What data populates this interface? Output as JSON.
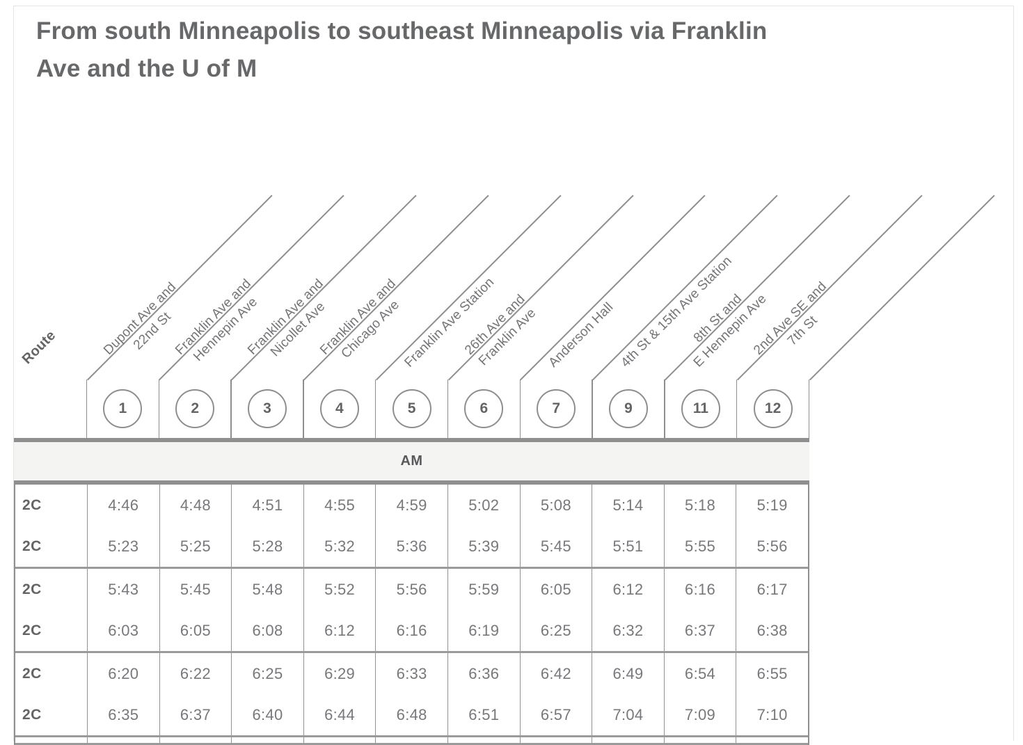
{
  "title": "From south Minneapolis to southeast Minneapolis via Franklin Ave and the U of M",
  "title_lines": [
    "From south Minneapolis to southeast Minneapolis via Franklin",
    "Ave and the U of M"
  ],
  "route_column_label": "Route",
  "period_label": "AM",
  "stops": [
    {
      "number": "1",
      "name_lines": [
        "Dupont Ave and",
        "22nd St"
      ]
    },
    {
      "number": "2",
      "name_lines": [
        "Franklin Ave and",
        "Hennepin Ave"
      ]
    },
    {
      "number": "3",
      "name_lines": [
        "Franklin Ave and",
        "Nicollet Ave"
      ]
    },
    {
      "number": "4",
      "name_lines": [
        "Franklin Ave and",
        "Chicago Ave"
      ]
    },
    {
      "number": "5",
      "name_lines": [
        "Franklin Ave Station"
      ]
    },
    {
      "number": "6",
      "name_lines": [
        "26th Ave and",
        "Franklin Ave"
      ]
    },
    {
      "number": "7",
      "name_lines": [
        "Anderson Hall"
      ]
    },
    {
      "number": "9",
      "name_lines": [
        "4th St & 15th Ave Station"
      ]
    },
    {
      "number": "11",
      "name_lines": [
        "8th St and",
        "E Hennepin Ave"
      ]
    },
    {
      "number": "12",
      "name_lines": [
        "2nd Ave SE and",
        "7th St"
      ]
    }
  ],
  "trip_groups": [
    {
      "trips": [
        {
          "route": "2C",
          "times": [
            "4:46",
            "4:48",
            "4:51",
            "4:55",
            "4:59",
            "5:02",
            "5:08",
            "5:14",
            "5:18",
            "5:19"
          ]
        },
        {
          "route": "2C",
          "times": [
            "5:23",
            "5:25",
            "5:28",
            "5:32",
            "5:36",
            "5:39",
            "5:45",
            "5:51",
            "5:55",
            "5:56"
          ]
        }
      ]
    },
    {
      "trips": [
        {
          "route": "2C",
          "times": [
            "5:43",
            "5:45",
            "5:48",
            "5:52",
            "5:56",
            "5:59",
            "6:05",
            "6:12",
            "6:16",
            "6:17"
          ]
        },
        {
          "route": "2C",
          "times": [
            "6:03",
            "6:05",
            "6:08",
            "6:12",
            "6:16",
            "6:19",
            "6:25",
            "6:32",
            "6:37",
            "6:38"
          ]
        }
      ]
    },
    {
      "trips": [
        {
          "route": "2C",
          "times": [
            "6:20",
            "6:22",
            "6:25",
            "6:29",
            "6:33",
            "6:36",
            "6:42",
            "6:49",
            "6:54",
            "6:55"
          ]
        },
        {
          "route": "2C",
          "times": [
            "6:35",
            "6:37",
            "6:40",
            "6:44",
            "6:48",
            "6:51",
            "6:57",
            "7:04",
            "7:09",
            "7:10"
          ]
        }
      ]
    }
  ],
  "colors": {
    "title_text": "#67686a",
    "dark_text": "#636466",
    "time_text": "#77787b",
    "label_text": "#747578",
    "line_gray": "#8e8e8e",
    "group_border": "#9a9a9a",
    "period_band_bg": "#f4f4f2",
    "card_border": "#e4e4e2"
  }
}
